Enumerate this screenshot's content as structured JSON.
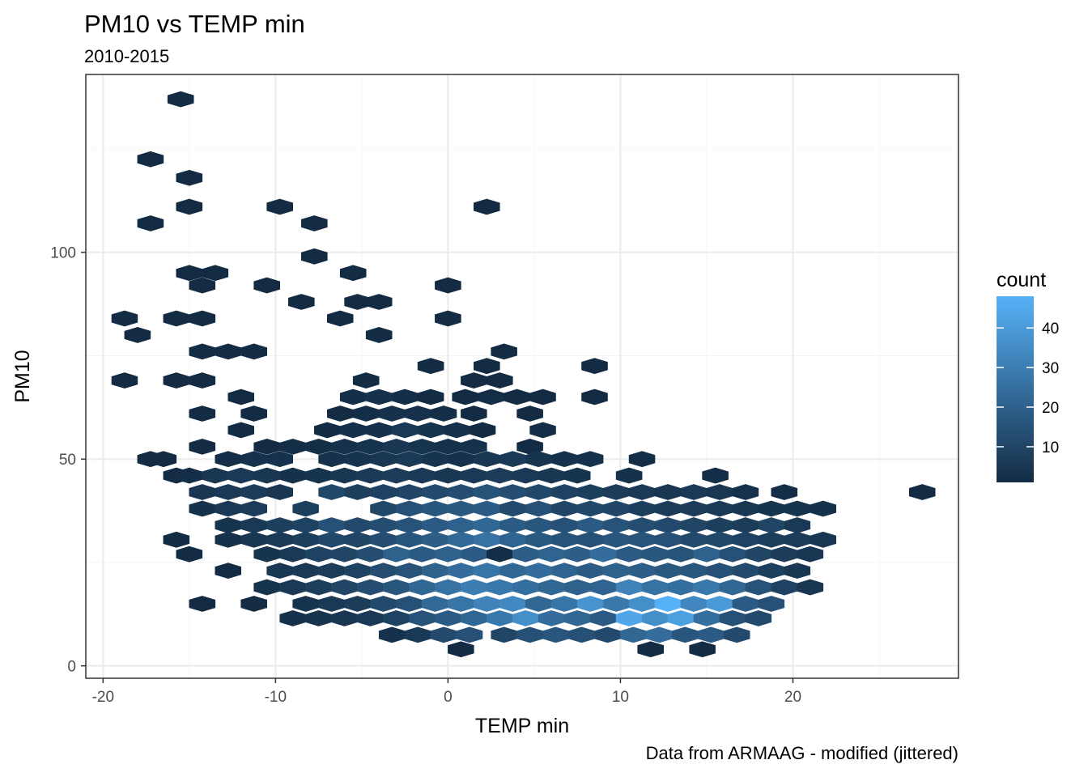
{
  "chart_data": {
    "type": "heatmap",
    "subtype": "hexbin",
    "title": "PM10 vs TEMP min",
    "subtitle": "2010-2015",
    "xlabel": "TEMP min",
    "ylabel": "PM10",
    "caption": "Data from ARMAAG - modified (jittered)",
    "xlim": [
      -21,
      29.6
    ],
    "ylim": [
      -3,
      143
    ],
    "x_ticks": [
      "-20",
      "-10",
      "0",
      "10",
      "20"
    ],
    "y_ticks": [
      "0",
      "50",
      "100"
    ],
    "x_tick_values": [
      -20,
      -10,
      0,
      10,
      20
    ],
    "y_tick_values": [
      0,
      50,
      100
    ],
    "x_minor_values": [
      -15,
      -5,
      5,
      15,
      25
    ],
    "y_minor_values": [
      25,
      75,
      125
    ],
    "grid": true,
    "legend": {
      "title": "count",
      "position": "right",
      "labels": [
        "10",
        "20",
        "30",
        "40"
      ],
      "label_values": [
        10,
        20,
        30,
        40
      ],
      "min": 1,
      "max": 48,
      "color_low": "#132B43",
      "color_high": "#56B1F7"
    },
    "colors": {
      "panel_border": "#333333",
      "grid_major": "#ebebeb",
      "grid_minor": "#f5f5f5"
    },
    "bin_width": 1.5,
    "bin_height": 3.75,
    "bins": [
      [
        -15.5,
        137,
        1
      ],
      [
        -17.25,
        122.5,
        1
      ],
      [
        -15,
        118,
        1
      ],
      [
        -15,
        111,
        1
      ],
      [
        -17.25,
        107,
        1
      ],
      [
        -9.75,
        111,
        1
      ],
      [
        2.25,
        111,
        1
      ],
      [
        -7.75,
        107,
        1
      ],
      [
        -7.75,
        99,
        1
      ],
      [
        -15,
        95,
        1
      ],
      [
        -13.5,
        95,
        1
      ],
      [
        -14.25,
        92,
        1
      ],
      [
        -10.5,
        92,
        1
      ],
      [
        -5.5,
        95,
        1
      ],
      [
        0,
        92,
        1
      ],
      [
        -8.5,
        88,
        1
      ],
      [
        -5.25,
        88,
        1
      ],
      [
        -4,
        88,
        1
      ],
      [
        -18.75,
        84,
        1
      ],
      [
        -15.75,
        84,
        1
      ],
      [
        -14.25,
        84,
        1
      ],
      [
        -6.25,
        84,
        1
      ],
      [
        0,
        84,
        1
      ],
      [
        -18,
        80,
        1
      ],
      [
        -4,
        80,
        1
      ],
      [
        -14.25,
        76,
        1
      ],
      [
        -12.75,
        76,
        1
      ],
      [
        -11.25,
        76,
        1
      ],
      [
        3.25,
        76,
        1
      ],
      [
        -1,
        72.5,
        1
      ],
      [
        2.25,
        72.5,
        1
      ],
      [
        8.5,
        72.5,
        1
      ],
      [
        -18.75,
        69,
        1
      ],
      [
        -15.75,
        69,
        1
      ],
      [
        -14.25,
        69,
        1
      ],
      [
        -4.75,
        69,
        1
      ],
      [
        1.5,
        69,
        1
      ],
      [
        3,
        69,
        1
      ],
      [
        -14.25,
        61,
        1
      ],
      [
        -12,
        65,
        1
      ],
      [
        -11.25,
        61,
        1
      ],
      [
        -12,
        57,
        1
      ],
      [
        -14.25,
        53,
        1
      ],
      [
        -17.25,
        50,
        1
      ],
      [
        -16.5,
        50,
        1
      ],
      [
        -15.75,
        46,
        1
      ],
      [
        -5.5,
        65,
        2
      ],
      [
        -4,
        65,
        3
      ],
      [
        -2.5,
        65,
        2
      ],
      [
        -1,
        65,
        1
      ],
      [
        1,
        65,
        1
      ],
      [
        2.5,
        65,
        2
      ],
      [
        4,
        65,
        1
      ],
      [
        5.5,
        65,
        1
      ],
      [
        8.5,
        65,
        1
      ],
      [
        -6.25,
        61,
        1
      ],
      [
        -4.75,
        61,
        2
      ],
      [
        -3.25,
        61,
        3
      ],
      [
        -1.75,
        61,
        3
      ],
      [
        -0.25,
        61,
        2
      ],
      [
        1.5,
        61,
        1
      ],
      [
        4.75,
        61,
        1
      ],
      [
        -7,
        57,
        1
      ],
      [
        -5.5,
        57,
        3
      ],
      [
        -4,
        57,
        3
      ],
      [
        -2.5,
        57,
        6
      ],
      [
        -1,
        57,
        4
      ],
      [
        0.5,
        57,
        3
      ],
      [
        2,
        57,
        1
      ],
      [
        5.5,
        57,
        2
      ],
      [
        -10.5,
        53,
        1
      ],
      [
        -9,
        53,
        2
      ],
      [
        -7.5,
        53,
        2
      ],
      [
        -6,
        53,
        3
      ],
      [
        -4.5,
        53,
        4
      ],
      [
        -3,
        53,
        5
      ],
      [
        -1.5,
        53,
        4
      ],
      [
        0,
        53,
        3
      ],
      [
        1.5,
        53,
        3
      ],
      [
        4.75,
        53,
        1
      ],
      [
        -12.75,
        50,
        2
      ],
      [
        -11.25,
        50,
        3
      ],
      [
        -9.75,
        50,
        3
      ],
      [
        -6.75,
        50,
        3
      ],
      [
        -5.25,
        50,
        4
      ],
      [
        -3.75,
        50,
        5
      ],
      [
        -2.25,
        50,
        6
      ],
      [
        -0.75,
        50,
        4
      ],
      [
        0.75,
        50,
        3
      ],
      [
        2.25,
        50,
        5
      ],
      [
        3.75,
        50,
        6
      ],
      [
        5.25,
        50,
        4
      ],
      [
        6.75,
        50,
        3
      ],
      [
        8.25,
        50,
        3
      ],
      [
        11.25,
        50,
        2
      ],
      [
        -15,
        46,
        2
      ],
      [
        -13.5,
        46,
        5
      ],
      [
        -12,
        46,
        6
      ],
      [
        -10.5,
        46,
        5
      ],
      [
        -9,
        46,
        3
      ],
      [
        -7.5,
        46,
        4
      ],
      [
        -6,
        46,
        5
      ],
      [
        -4.5,
        46,
        6
      ],
      [
        -3,
        46,
        7
      ],
      [
        -1.5,
        46,
        6
      ],
      [
        0,
        46,
        5
      ],
      [
        1.5,
        46,
        6
      ],
      [
        3,
        46,
        7
      ],
      [
        4.5,
        46,
        6
      ],
      [
        6,
        46,
        5
      ],
      [
        7.5,
        46,
        4
      ],
      [
        10.5,
        46,
        3
      ],
      [
        15.5,
        46,
        2
      ],
      [
        -14.25,
        42,
        5
      ],
      [
        -12.75,
        42,
        6
      ],
      [
        -11.25,
        42,
        7
      ],
      [
        -9.75,
        42,
        5
      ],
      [
        -6.75,
        42,
        11
      ],
      [
        -5.25,
        42,
        8
      ],
      [
        -3.75,
        42,
        9
      ],
      [
        -2.25,
        42,
        10
      ],
      [
        -0.75,
        42,
        12
      ],
      [
        0.75,
        42,
        13
      ],
      [
        2.25,
        42,
        15
      ],
      [
        3.75,
        42,
        13
      ],
      [
        5.25,
        42,
        11
      ],
      [
        6.75,
        42,
        9
      ],
      [
        8.25,
        42,
        8
      ],
      [
        9.75,
        42,
        7
      ],
      [
        11.25,
        42,
        6
      ],
      [
        12.75,
        42,
        5
      ],
      [
        14.25,
        42,
        6
      ],
      [
        15.75,
        42,
        5
      ],
      [
        17.25,
        42,
        3
      ],
      [
        19.5,
        42,
        2
      ],
      [
        27.5,
        42,
        1
      ],
      [
        -14.25,
        38,
        3
      ],
      [
        -12.75,
        38,
        6
      ],
      [
        -11.25,
        38,
        7
      ],
      [
        -8.25,
        38,
        8
      ],
      [
        -3.75,
        38,
        11
      ],
      [
        -2.25,
        38,
        14
      ],
      [
        -0.75,
        38,
        16
      ],
      [
        0.75,
        38,
        17
      ],
      [
        2.25,
        38,
        18
      ],
      [
        3.75,
        38,
        12
      ],
      [
        5.25,
        38,
        14
      ],
      [
        6.75,
        38,
        10
      ],
      [
        8.25,
        38,
        11
      ],
      [
        9.75,
        38,
        10
      ],
      [
        11.25,
        38,
        8
      ],
      [
        12.75,
        38,
        7
      ],
      [
        14.25,
        38,
        7
      ],
      [
        15.75,
        38,
        6
      ],
      [
        17.25,
        38,
        5
      ],
      [
        18.75,
        38,
        4
      ],
      [
        20.25,
        38,
        4
      ],
      [
        21.75,
        38,
        3
      ],
      [
        -12.75,
        34,
        4
      ],
      [
        -11.25,
        34,
        6
      ],
      [
        -9.75,
        34,
        8
      ],
      [
        -8.25,
        34,
        9
      ],
      [
        -6.75,
        34,
        14
      ],
      [
        -5.25,
        34,
        12
      ],
      [
        -3.75,
        34,
        13
      ],
      [
        -2.25,
        34,
        15
      ],
      [
        -0.75,
        34,
        18
      ],
      [
        0.75,
        34,
        20
      ],
      [
        2.25,
        34,
        22
      ],
      [
        3.75,
        34,
        18
      ],
      [
        5.25,
        34,
        16
      ],
      [
        6.75,
        34,
        14
      ],
      [
        8.25,
        34,
        18
      ],
      [
        9.75,
        34,
        15
      ],
      [
        11.25,
        34,
        13
      ],
      [
        12.75,
        34,
        12
      ],
      [
        14.25,
        34,
        10
      ],
      [
        15.75,
        34,
        8
      ],
      [
        17.25,
        34,
        7
      ],
      [
        18.75,
        34,
        10
      ],
      [
        20.25,
        34,
        6
      ],
      [
        -15.75,
        30.5,
        1
      ],
      [
        -12.75,
        30.5,
        3
      ],
      [
        -11.25,
        30.5,
        5
      ],
      [
        -9.75,
        30.5,
        6
      ],
      [
        -8.25,
        30.5,
        8
      ],
      [
        -6.75,
        30.5,
        11
      ],
      [
        -5.25,
        30.5,
        10
      ],
      [
        -3.75,
        30.5,
        13
      ],
      [
        -2.25,
        30.5,
        16
      ],
      [
        -0.75,
        30.5,
        19
      ],
      [
        0.75,
        30.5,
        23
      ],
      [
        2.25,
        30.5,
        26
      ],
      [
        3.75,
        30.5,
        21
      ],
      [
        5.25,
        30.5,
        17
      ],
      [
        6.75,
        30.5,
        15
      ],
      [
        8.25,
        30.5,
        14
      ],
      [
        9.75,
        30.5,
        16
      ],
      [
        11.25,
        30.5,
        15
      ],
      [
        12.75,
        30.5,
        14
      ],
      [
        14.25,
        30.5,
        12
      ],
      [
        15.75,
        30.5,
        11
      ],
      [
        17.25,
        30.5,
        9
      ],
      [
        18.75,
        30.5,
        8
      ],
      [
        20.25,
        30.5,
        7
      ],
      [
        21.75,
        30.5,
        5
      ],
      [
        -15,
        27,
        1
      ],
      [
        -10.5,
        27,
        4
      ],
      [
        -9,
        27,
        6
      ],
      [
        -7.5,
        27,
        9
      ],
      [
        -6,
        27,
        10
      ],
      [
        -4.5,
        27,
        13
      ],
      [
        -3,
        27,
        20
      ],
      [
        -1.5,
        27,
        18
      ],
      [
        0,
        27,
        20
      ],
      [
        1.5,
        27,
        18
      ],
      [
        3,
        27,
        2
      ],
      [
        4.5,
        27,
        19
      ],
      [
        6,
        27,
        21
      ],
      [
        7.5,
        27,
        19
      ],
      [
        9,
        27,
        24
      ],
      [
        10.5,
        27,
        18
      ],
      [
        12,
        27,
        16
      ],
      [
        13.5,
        27,
        15
      ],
      [
        15,
        27,
        20
      ],
      [
        16.5,
        27,
        14
      ],
      [
        18,
        27,
        10
      ],
      [
        19.5,
        27,
        7
      ],
      [
        21,
        27,
        5
      ],
      [
        -12.75,
        23,
        1
      ],
      [
        -9.75,
        23,
        5
      ],
      [
        -8.25,
        23,
        6
      ],
      [
        -6.75,
        23,
        7
      ],
      [
        -5.25,
        23,
        9
      ],
      [
        -3.75,
        23,
        13
      ],
      [
        -2.25,
        23,
        15
      ],
      [
        -0.75,
        23,
        20
      ],
      [
        0.75,
        23,
        24
      ],
      [
        2.25,
        23,
        27
      ],
      [
        3.75,
        23,
        22
      ],
      [
        5.25,
        23,
        24
      ],
      [
        6.75,
        23,
        21
      ],
      [
        8.25,
        23,
        18
      ],
      [
        9.75,
        23,
        20
      ],
      [
        11.25,
        23,
        19
      ],
      [
        12.75,
        23,
        17
      ],
      [
        14.25,
        23,
        16
      ],
      [
        15.75,
        23,
        14
      ],
      [
        17.25,
        23,
        12
      ],
      [
        18.75,
        23,
        8
      ],
      [
        20.25,
        23,
        5
      ],
      [
        -10.5,
        19,
        4
      ],
      [
        -9,
        19,
        6
      ],
      [
        -7.5,
        19,
        8
      ],
      [
        -6,
        19,
        10
      ],
      [
        -4.5,
        19,
        13
      ],
      [
        -3,
        19,
        16
      ],
      [
        -1.5,
        19,
        22
      ],
      [
        0,
        19,
        26
      ],
      [
        1.5,
        19,
        30
      ],
      [
        3,
        19,
        28
      ],
      [
        4.5,
        19,
        25
      ],
      [
        6,
        19,
        22
      ],
      [
        7.5,
        19,
        20
      ],
      [
        9,
        19,
        21
      ],
      [
        10.5,
        19,
        32
      ],
      [
        12,
        19,
        26
      ],
      [
        13.5,
        19,
        25
      ],
      [
        15,
        19,
        28
      ],
      [
        16.5,
        19,
        22
      ],
      [
        18,
        19,
        15
      ],
      [
        19.5,
        19,
        9
      ],
      [
        21,
        19,
        5
      ],
      [
        -14.25,
        15,
        1
      ],
      [
        -11.25,
        15,
        1
      ],
      [
        -8.25,
        15,
        4
      ],
      [
        -6.75,
        15,
        6
      ],
      [
        -5.25,
        15,
        7
      ],
      [
        -3.75,
        15,
        12
      ],
      [
        -2.25,
        15,
        14
      ],
      [
        -0.75,
        15,
        23
      ],
      [
        0.75,
        15,
        27
      ],
      [
        2.25,
        15,
        32
      ],
      [
        3.75,
        15,
        34
      ],
      [
        5.25,
        15,
        22
      ],
      [
        6.75,
        15,
        27
      ],
      [
        8.25,
        15,
        38
      ],
      [
        9.75,
        15,
        28
      ],
      [
        11.25,
        15,
        36
      ],
      [
        12.75,
        15,
        48
      ],
      [
        14.25,
        15,
        33
      ],
      [
        15.75,
        15,
        40
      ],
      [
        17.25,
        15,
        18
      ],
      [
        18.75,
        15,
        14
      ],
      [
        -9,
        11.5,
        3
      ],
      [
        -7.5,
        11.5,
        4
      ],
      [
        -6,
        11.5,
        5
      ],
      [
        -4.5,
        11.5,
        6
      ],
      [
        -3,
        11.5,
        9
      ],
      [
        -1.5,
        11.5,
        15
      ],
      [
        0,
        11.5,
        18
      ],
      [
        1.5,
        11.5,
        22
      ],
      [
        3,
        11.5,
        28
      ],
      [
        4.5,
        11.5,
        36
      ],
      [
        6,
        11.5,
        24
      ],
      [
        7.5,
        11.5,
        22
      ],
      [
        9,
        11.5,
        18
      ],
      [
        10.5,
        11.5,
        44
      ],
      [
        12,
        11.5,
        36
      ],
      [
        13.5,
        11.5,
        42
      ],
      [
        15,
        11.5,
        25
      ],
      [
        16.5,
        11.5,
        14
      ],
      [
        18,
        11.5,
        12
      ],
      [
        -3.25,
        7.5,
        3
      ],
      [
        -1.75,
        7.5,
        6
      ],
      [
        -0.25,
        7.5,
        12
      ],
      [
        1.25,
        7.5,
        14
      ],
      [
        3.25,
        7.5,
        10
      ],
      [
        4.75,
        7.5,
        14
      ],
      [
        6.25,
        7.5,
        16
      ],
      [
        7.75,
        7.5,
        14
      ],
      [
        9.25,
        7.5,
        12
      ],
      [
        10.75,
        7.5,
        22
      ],
      [
        12.25,
        7.5,
        24
      ],
      [
        13.75,
        7.5,
        16
      ],
      [
        15.25,
        7.5,
        18
      ],
      [
        16.75,
        7.5,
        12
      ],
      [
        0.75,
        4,
        1
      ],
      [
        11.75,
        4,
        1
      ],
      [
        14.75,
        4,
        1
      ]
    ]
  }
}
